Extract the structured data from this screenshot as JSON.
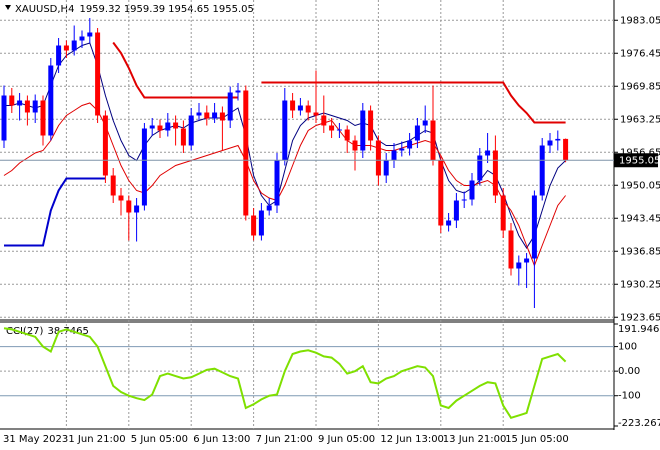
{
  "chart_data": [
    {
      "type": "candlestick",
      "title": "XAUUSD,H4",
      "categories": [
        "31 May 2023",
        null,
        null,
        null,
        null,
        null,
        null,
        null,
        "1 Jun 21:00",
        null,
        null,
        null,
        null,
        null,
        null,
        null,
        "5 Jun 05:00",
        null,
        null,
        null,
        null,
        null,
        null,
        null,
        "6 Jun 13:00",
        null,
        null,
        null,
        null,
        null,
        null,
        null,
        "7 Jun 21:00",
        null,
        null,
        null,
        null,
        null,
        null,
        null,
        "9 Jun 05:00",
        null,
        null,
        null,
        null,
        null,
        null,
        null,
        "12 Jun 13:00",
        null,
        null,
        null,
        null,
        null,
        null,
        null,
        "13 Jun 21:00",
        null,
        null,
        null,
        null,
        null,
        null,
        null,
        "15 Jun 05:00",
        null,
        null,
        null,
        null,
        null,
        null,
        null,
        null
      ],
      "open": [
        1959.0,
        1968.0,
        1966.0,
        1967.0,
        1964.6,
        1967.0,
        1960.0,
        1974.0,
        1978.0,
        1977.0,
        1979.0,
        1979.8,
        1980.6,
        1964.0,
        1952.0,
        1948.0,
        1947.0,
        1944.6,
        1946.0,
        1961.4,
        1962.0,
        1961.0,
        1962.6,
        1961.4,
        1958.0,
        1964.0,
        1964.6,
        1963.4,
        1964.6,
        1963.0,
        1968.6,
        1969.0,
        1944.0,
        1940.0,
        1945.0,
        1946.0,
        1955.0,
        1967.0,
        1965.0,
        1966.0,
        1964.6,
        1964.0,
        1962.0,
        1961.0,
        1961.2,
        1959.0,
        1957.0,
        1965.0,
        1959.0,
        1952.0,
        1955.0,
        1957.0,
        1957.4,
        1959.0,
        1962.0,
        1963.0,
        1955.0,
        1942.0,
        1943.0,
        1947.0,
        1947.2,
        1951.0,
        1956.0,
        1957.0,
        1948.0,
        1941.0,
        1933.4,
        1934.6,
        1935.4,
        1948.0,
        1958.0,
        1959.0,
        1959.32
      ],
      "high": [
        1970.0,
        1969.5,
        1968.5,
        1968.0,
        1968.2,
        1968.0,
        1975.5,
        1979.5,
        1979.0,
        1982.0,
        1981.0,
        1983.5,
        1981.5,
        1965.0,
        1953.5,
        1949.5,
        1948.0,
        1947.5,
        1962.5,
        1963.5,
        1963.2,
        1964.5,
        1964.0,
        1963.0,
        1965.5,
        1966.5,
        1966.0,
        1966.5,
        1965.8,
        1969.8,
        1970.5,
        1970.0,
        1945.5,
        1946.5,
        1947.5,
        1956.5,
        1969.5,
        1968.5,
        1967.5,
        1967.0,
        1973.0,
        1968.0,
        1963.5,
        1962.5,
        1962.0,
        1960.0,
        1966.5,
        1966.0,
        1960.0,
        1956.5,
        1958.5,
        1958.8,
        1960.5,
        1963.5,
        1966.0,
        1970.0,
        1956.0,
        1944.5,
        1948.5,
        1948.8,
        1952.5,
        1957.5,
        1960.5,
        1960.0,
        1949.5,
        1942.5,
        1936.0,
        1936.5,
        1949.0,
        1959.5,
        1960.5,
        1961.0,
        1959.39
      ],
      "low": [
        1957.5,
        1964.5,
        1963.0,
        1962.0,
        1962.5,
        1958.0,
        1959.0,
        1972.5,
        1975.5,
        1976.0,
        1977.5,
        1978.5,
        1962.5,
        1950.5,
        1946.5,
        1944.0,
        1939.0,
        1938.8,
        1945.0,
        1960.0,
        1959.5,
        1959.8,
        1958.0,
        1956.5,
        1957.0,
        1963.0,
        1962.0,
        1962.5,
        1957.0,
        1961.5,
        1967.0,
        1943.0,
        1939.0,
        1939.0,
        1944.0,
        1944.5,
        1954.0,
        1963.5,
        1964.0,
        1963.0,
        1962.5,
        1960.5,
        1959.5,
        1959.5,
        1956.5,
        1953.0,
        1955.5,
        1957.0,
        1950.0,
        1950.5,
        1953.5,
        1955.8,
        1956.0,
        1957.5,
        1960.5,
        1954.0,
        1940.5,
        1940.8,
        1941.5,
        1945.5,
        1946.0,
        1950.0,
        1954.5,
        1946.5,
        1939.5,
        1932.0,
        1930.0,
        1929.5,
        1925.5,
        1947.0,
        1956.5,
        1957.0,
        1954.65
      ],
      "close": [
        1968.0,
        1966.0,
        1967.0,
        1964.6,
        1967.0,
        1960.0,
        1974.0,
        1978.0,
        1977.0,
        1979.0,
        1979.8,
        1980.6,
        1964.0,
        1952.0,
        1948.0,
        1947.0,
        1944.6,
        1946.0,
        1961.4,
        1962.0,
        1961.0,
        1962.6,
        1961.4,
        1958.0,
        1964.0,
        1964.6,
        1963.4,
        1964.6,
        1963.0,
        1968.6,
        1969.0,
        1944.0,
        1940.0,
        1945.0,
        1946.0,
        1955.0,
        1967.0,
        1965.0,
        1966.0,
        1964.6,
        1964.0,
        1962.0,
        1961.0,
        1961.2,
        1959.0,
        1957.0,
        1965.0,
        1959.0,
        1952.0,
        1955.0,
        1957.0,
        1957.4,
        1959.0,
        1962.0,
        1963.0,
        1955.0,
        1942.0,
        1943.0,
        1947.0,
        1947.2,
        1951.0,
        1956.0,
        1957.0,
        1948.0,
        1941.0,
        1933.4,
        1934.6,
        1935.4,
        1948.0,
        1958.0,
        1959.0,
        1959.32,
        1955.05
      ],
      "up_color": "#0000ff",
      "down_color": "#ff0000",
      "series": [
        {
          "color": "#000080",
          "width": 1,
          "values": [
            1966,
            1966,
            1966.5,
            1966,
            1965.5,
            1966,
            1970,
            1974,
            1976,
            1977,
            1978,
            1978.5,
            1974,
            1968,
            1963,
            1959,
            1956,
            1955,
            1958,
            1960,
            1961,
            1961.5,
            1962,
            1961.5,
            1962.5,
            1963,
            1963.5,
            1963.5,
            1963.5,
            1964.5,
            1965.5,
            1960,
            1952,
            1948,
            1946,
            1947,
            1953,
            1959,
            1962,
            1963.5,
            1964,
            1964.5,
            1964,
            1963.5,
            1963,
            1962,
            1962.5,
            1962,
            1959,
            1958,
            1958,
            1958.5,
            1959,
            1960,
            1961,
            1960.5,
            1955,
            1951,
            1949,
            1948.5,
            1949.5,
            1951,
            1953,
            1952,
            1948.5,
            1944,
            1940,
            1937.5,
            1940,
            1945,
            1950,
            1953.5,
            1955
          ]
        },
        {
          "color": "#e00000",
          "width": 1,
          "values": [
            1952,
            1953,
            1954.5,
            1955.5,
            1956.5,
            1957,
            1959,
            1962,
            1964,
            1965,
            1966,
            1966.5,
            1965,
            1962,
            1958,
            1954,
            1951,
            1949,
            1948.5,
            1950,
            1952,
            1953,
            1954,
            1954.5,
            1955,
            1955.5,
            1956,
            1956.5,
            1957,
            1957.5,
            1958,
            1955,
            1951,
            1948.5,
            1947.5,
            1947,
            1950,
            1954,
            1958,
            1961,
            1962,
            1962.5,
            1963,
            1961,
            1959,
            1958,
            1958,
            1958,
            1957.5,
            1957,
            1957,
            1957.5,
            1958,
            1958.5,
            1959,
            1958.5,
            1956,
            1953,
            1951,
            1950,
            1950,
            1950.5,
            1951,
            1950,
            1947,
            1945,
            1942,
            1938,
            1934,
            1938,
            1942,
            1946,
            1948
          ]
        },
        {
          "color": "#0000cc",
          "width": 2,
          "values": [
            1938,
            1938,
            1938,
            1938,
            1938,
            1938,
            1945,
            1949,
            1951.4,
            1951.4,
            1951.4,
            1951.4,
            1951.4,
            1951.4,
            null,
            null,
            null,
            null,
            null,
            null,
            null,
            null,
            null,
            null,
            null,
            null,
            null,
            null,
            null,
            null,
            null,
            null,
            null,
            null,
            null,
            null,
            null,
            null,
            null,
            null,
            null,
            null,
            null,
            null,
            null,
            null,
            null,
            null,
            null,
            null,
            null,
            null,
            null,
            null,
            null,
            null,
            null,
            null,
            null,
            null,
            null,
            null,
            null,
            null,
            null,
            null,
            null,
            null,
            null,
            null,
            null,
            null,
            null
          ]
        },
        {
          "color": "#e00000",
          "width": 2,
          "values": [
            null,
            null,
            null,
            null,
            null,
            null,
            null,
            null,
            null,
            null,
            null,
            null,
            null,
            null,
            1978.6,
            1976.5,
            1973.5,
            1970,
            1967.6,
            1967.6,
            1967.6,
            1967.6,
            1967.6,
            1967.6,
            1967.6,
            1967.6,
            1967.6,
            1967.6,
            1967.6,
            1967.6,
            1967.6,
            null,
            null,
            1970.6,
            1970.6,
            1970.6,
            1970.6,
            1970.6,
            1970.6,
            1970.6,
            1970.6,
            1970.6,
            1970.6,
            1970.6,
            1970.6,
            1970.6,
            1970.6,
            1970.6,
            1970.6,
            1970.6,
            1970.6,
            1970.6,
            1970.6,
            1970.6,
            1970.6,
            1970.6,
            1970.6,
            1970.6,
            1970.6,
            1970.6,
            1970.6,
            1970.6,
            1970.6,
            1970.6,
            1970.6,
            1968,
            1966,
            1964.5,
            1962.6,
            1962.6,
            1962.6,
            1962.6,
            1962.6
          ]
        }
      ],
      "ylim": [
        1923.3,
        1987.1
      ],
      "yticks": [
        1983.05,
        1976.45,
        1969.85,
        1963.25,
        1956.65,
        1950.05,
        1943.45,
        1936.85,
        1930.25,
        1923.65
      ],
      "grid": true
    },
    {
      "type": "line",
      "title": "CCI(27)",
      "series": [
        {
          "color": "#7fe000",
          "width": 2,
          "values": [
            175,
            170,
            160,
            150,
            140,
            100,
            80,
            160,
            170,
            160,
            150,
            140,
            100,
            20,
            -60,
            -85,
            -100,
            -110,
            -118,
            -95,
            -20,
            -10,
            -20,
            -30,
            -25,
            -10,
            5,
            10,
            -5,
            -20,
            -30,
            -150,
            -135,
            -115,
            -100,
            -95,
            0,
            70,
            80,
            85,
            75,
            60,
            55,
            30,
            -10,
            0,
            20,
            -45,
            -50,
            -30,
            -20,
            0,
            10,
            20,
            15,
            -20,
            -140,
            -150,
            -120,
            -100,
            -80,
            -60,
            -45,
            -50,
            -140,
            -190,
            -180,
            -170,
            -60,
            50,
            60,
            70,
            38.7465
          ]
        }
      ],
      "ylim": [
        -223.2679,
        191.9469
      ],
      "yticks": [
        191.9469,
        100,
        {
          "value": 0,
          "label": "0.00"
        },
        -100,
        -223.2679
      ]
    }
  ]
}
